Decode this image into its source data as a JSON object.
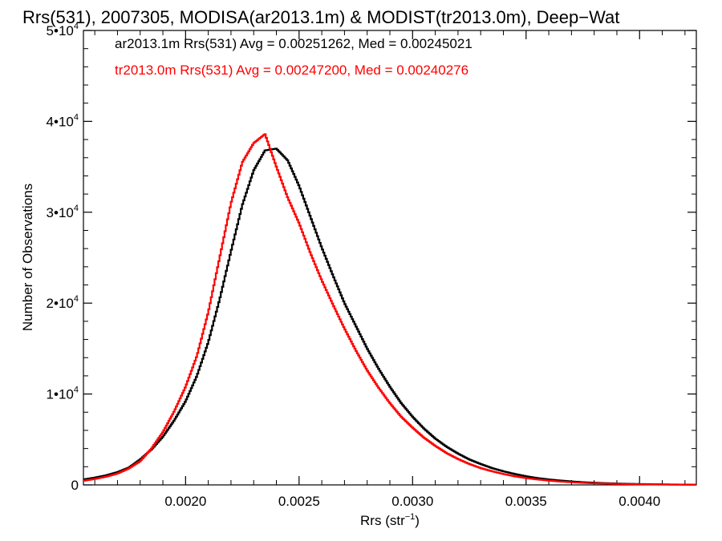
{
  "chart_data": {
    "type": "line",
    "title": "Rrs(531), 2007305, MODISA(ar2013.1m) & MODIST(tr2013.0m), Deep−Wat",
    "xlabel": "Rrs (str",
    "xlabel_sup": "−1",
    "xlabel_suffix": ")",
    "ylabel": "Number of Observations",
    "xlim": [
      0.00155,
      0.00425
    ],
    "ylim": [
      0,
      50000
    ],
    "x_ticks": [
      0.002,
      0.0025,
      0.003,
      0.0035,
      0.004
    ],
    "x_tick_labels": [
      "0.0020",
      "0.0025",
      "0.0030",
      "0.0035",
      "0.0040"
    ],
    "y_ticks": [
      {
        "value": 0,
        "mantissa": "0",
        "exponent": ""
      },
      {
        "value": 10000,
        "mantissa": "1•10",
        "exponent": "4"
      },
      {
        "value": 20000,
        "mantissa": "2•10",
        "exponent": "4"
      },
      {
        "value": 30000,
        "mantissa": "3•10",
        "exponent": "4"
      },
      {
        "value": 40000,
        "mantissa": "4•10",
        "exponent": "4"
      },
      {
        "value": 50000,
        "mantissa": "5•10",
        "exponent": "4"
      }
    ],
    "grid": false,
    "legend_position": "top-left",
    "series": [
      {
        "name": "ar2013.1m Rrs(531) Avg = 0.00251262, Med = 0.00245021",
        "color": "#000000",
        "step": true,
        "points": [
          [
            0.00155,
            600
          ],
          [
            0.0016,
            800
          ],
          [
            0.00165,
            1050
          ],
          [
            0.0017,
            1400
          ],
          [
            0.00175,
            1900
          ],
          [
            0.0018,
            2800
          ],
          [
            0.00185,
            3900
          ],
          [
            0.0019,
            5300
          ],
          [
            0.00195,
            7100
          ],
          [
            0.002,
            9200
          ],
          [
            0.00205,
            12000
          ],
          [
            0.0021,
            15700
          ],
          [
            0.00215,
            20400
          ],
          [
            0.0022,
            25700
          ],
          [
            0.00225,
            30800
          ],
          [
            0.0023,
            34600
          ],
          [
            0.00235,
            36800
          ],
          [
            0.0024,
            37000
          ],
          [
            0.00245,
            35700
          ],
          [
            0.0025,
            32900
          ],
          [
            0.00255,
            29500
          ],
          [
            0.0026,
            26100
          ],
          [
            0.00265,
            23000
          ],
          [
            0.0027,
            20000
          ],
          [
            0.00275,
            17500
          ],
          [
            0.0028,
            15000
          ],
          [
            0.00285,
            12800
          ],
          [
            0.0029,
            10800
          ],
          [
            0.00295,
            9000
          ],
          [
            0.003,
            7500
          ],
          [
            0.00305,
            6200
          ],
          [
            0.0031,
            5100
          ],
          [
            0.00315,
            4200
          ],
          [
            0.0032,
            3450
          ],
          [
            0.00325,
            2800
          ],
          [
            0.0033,
            2300
          ],
          [
            0.00335,
            1850
          ],
          [
            0.0034,
            1500
          ],
          [
            0.00345,
            1200
          ],
          [
            0.0035,
            950
          ],
          [
            0.00355,
            750
          ],
          [
            0.0036,
            600
          ],
          [
            0.00365,
            480
          ],
          [
            0.0037,
            380
          ],
          [
            0.00375,
            300
          ],
          [
            0.0038,
            240
          ],
          [
            0.00385,
            190
          ],
          [
            0.0039,
            150
          ],
          [
            0.00395,
            120
          ],
          [
            0.004,
            95
          ],
          [
            0.00405,
            75
          ],
          [
            0.0041,
            60
          ],
          [
            0.00415,
            45
          ],
          [
            0.0042,
            35
          ],
          [
            0.00425,
            25
          ]
        ]
      },
      {
        "name": "tr2013.0m Rrs(531) Avg = 0.00247200, Med = 0.00240276",
        "color": "#ff0000",
        "step": true,
        "points": [
          [
            0.00155,
            450
          ],
          [
            0.0016,
            650
          ],
          [
            0.00165,
            900
          ],
          [
            0.0017,
            1250
          ],
          [
            0.00175,
            1800
          ],
          [
            0.0018,
            2600
          ],
          [
            0.00185,
            4000
          ],
          [
            0.0019,
            5800
          ],
          [
            0.00195,
            8100
          ],
          [
            0.002,
            10800
          ],
          [
            0.00205,
            14200
          ],
          [
            0.0021,
            19000
          ],
          [
            0.00215,
            25000
          ],
          [
            0.0022,
            31000
          ],
          [
            0.00225,
            35500
          ],
          [
            0.0023,
            37600
          ],
          [
            0.00235,
            38600
          ],
          [
            0.0024,
            35000
          ],
          [
            0.00245,
            31600
          ],
          [
            0.0025,
            28800
          ],
          [
            0.00255,
            25500
          ],
          [
            0.0026,
            22500
          ],
          [
            0.00265,
            19800
          ],
          [
            0.0027,
            17200
          ],
          [
            0.00275,
            14800
          ],
          [
            0.0028,
            12600
          ],
          [
            0.00285,
            10700
          ],
          [
            0.0029,
            9000
          ],
          [
            0.00295,
            7500
          ],
          [
            0.003,
            6300
          ],
          [
            0.00305,
            5200
          ],
          [
            0.0031,
            4300
          ],
          [
            0.00315,
            3500
          ],
          [
            0.0032,
            2850
          ],
          [
            0.00325,
            2300
          ],
          [
            0.0033,
            1850
          ],
          [
            0.00335,
            1500
          ],
          [
            0.0034,
            1200
          ],
          [
            0.00345,
            950
          ],
          [
            0.0035,
            750
          ],
          [
            0.00355,
            600
          ],
          [
            0.0036,
            470
          ],
          [
            0.00365,
            370
          ],
          [
            0.0037,
            290
          ],
          [
            0.00375,
            230
          ],
          [
            0.0038,
            180
          ],
          [
            0.00385,
            145
          ],
          [
            0.0039,
            115
          ],
          [
            0.00395,
            90
          ],
          [
            0.004,
            70
          ],
          [
            0.00405,
            55
          ],
          [
            0.0041,
            42
          ],
          [
            0.00415,
            32
          ],
          [
            0.0042,
            24
          ],
          [
            0.00425,
            18
          ]
        ]
      }
    ]
  }
}
